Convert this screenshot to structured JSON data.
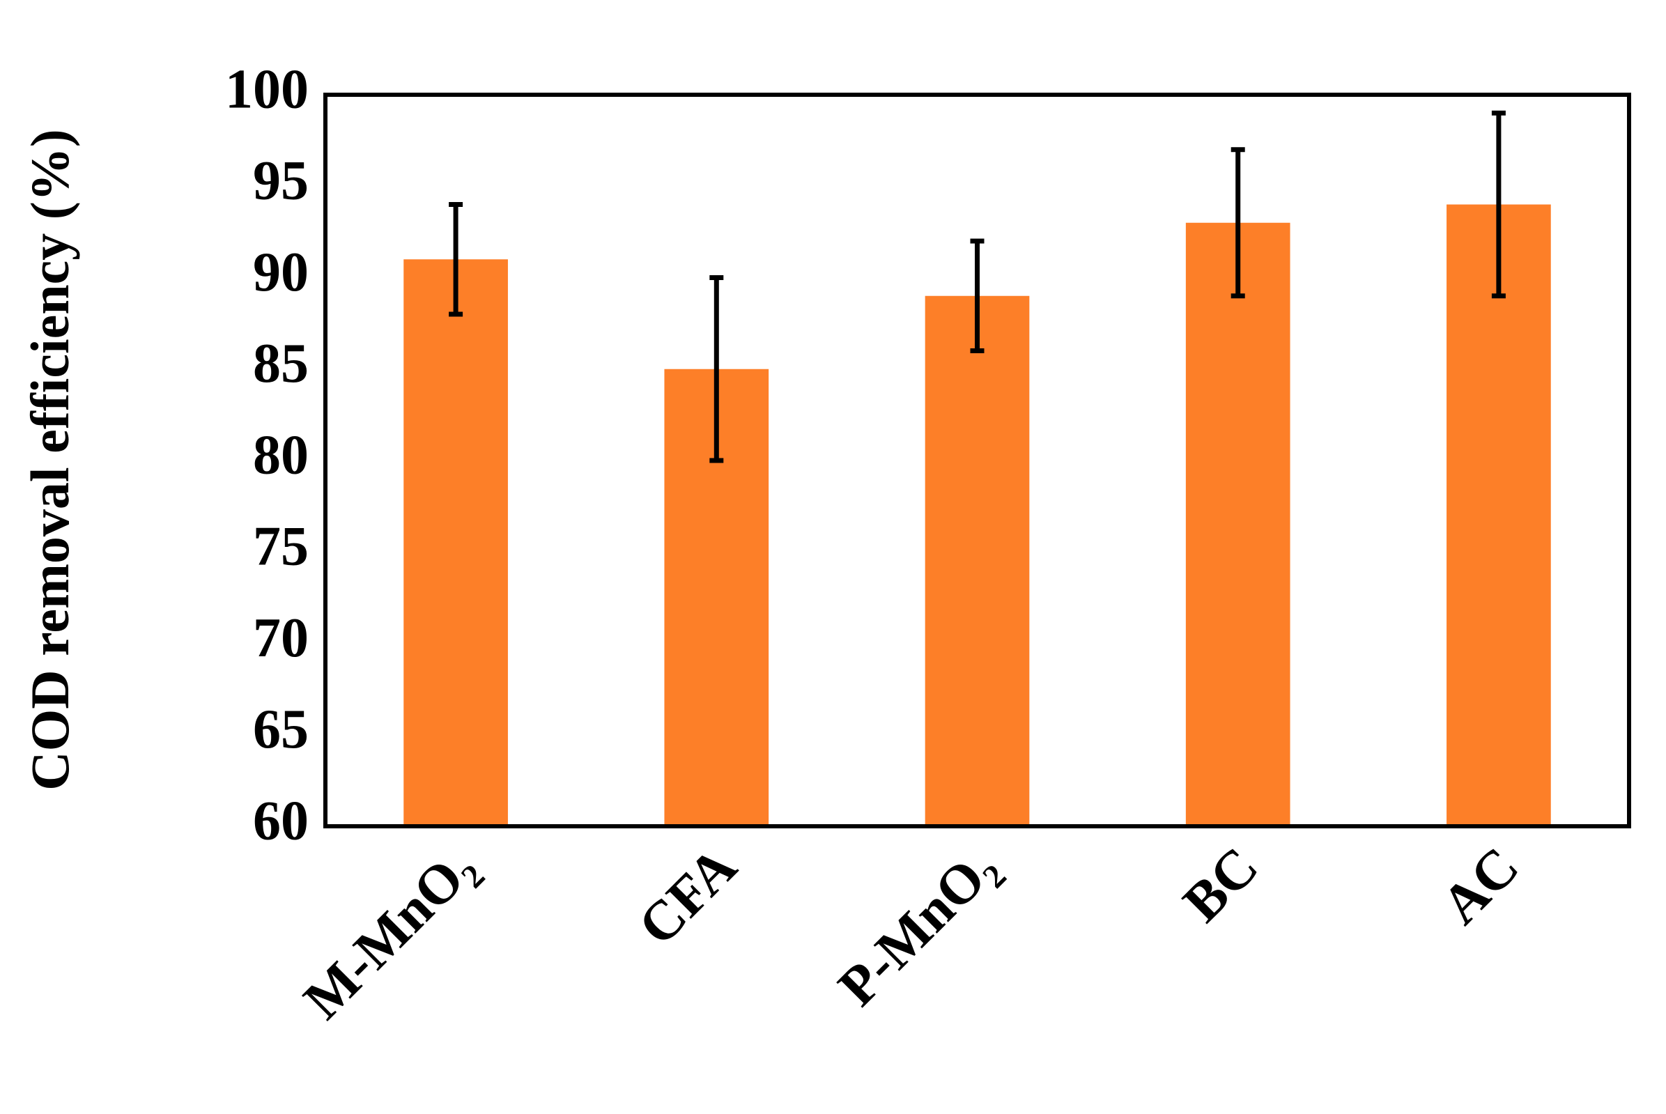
{
  "chart_data": {
    "type": "bar",
    "y_label": "COD removal efficiency (%)",
    "categories": [
      "M-MnO₂",
      "CFA",
      "P-MnO₂",
      "BC",
      "AC"
    ],
    "values": [
      91,
      85,
      89,
      93,
      94
    ],
    "errors": [
      3,
      5,
      3,
      4,
      5
    ],
    "color": "#fd7f28",
    "ylim": [
      60,
      100
    ],
    "yticks": [
      60,
      65,
      70,
      75,
      80,
      85,
      90,
      95,
      100
    ],
    "grid": false
  }
}
